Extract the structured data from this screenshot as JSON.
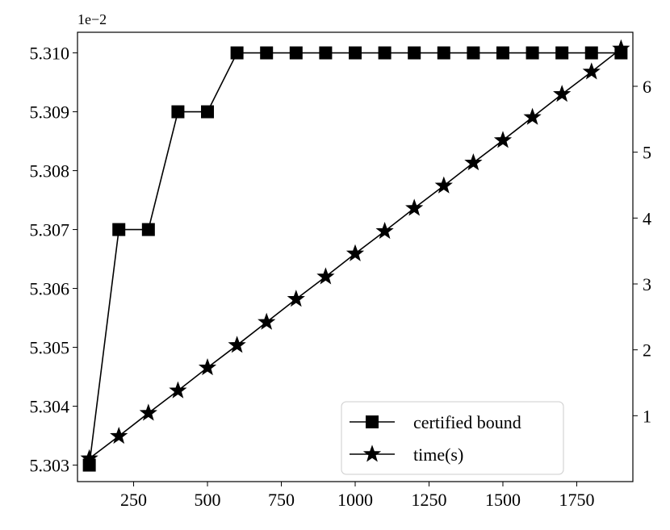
{
  "chart_data": {
    "type": "line",
    "title": "",
    "xlabel": "",
    "ylabel": "",
    "y_offset_label": "1e−2",
    "x": [
      100,
      200,
      300,
      400,
      500,
      600,
      700,
      800,
      900,
      1000,
      1100,
      1200,
      1300,
      1400,
      1500,
      1600,
      1700,
      1800,
      1900
    ],
    "xlim": [
      60,
      1940
    ],
    "xticks": [
      250,
      500,
      750,
      1000,
      1250,
      1500,
      1750
    ],
    "xtick_labels": [
      "250",
      "500",
      "750",
      "1000",
      "1250",
      "1500",
      "1750"
    ],
    "ylim_left": [
      5.30272,
      5.31035
    ],
    "yticks_left": [
      5.303,
      5.304,
      5.305,
      5.306,
      5.307,
      5.308,
      5.309,
      5.31
    ],
    "ytick_labels_left": [
      "5.303",
      "5.304",
      "5.305",
      "5.306",
      "5.307",
      "5.308",
      "5.309",
      "5.310"
    ],
    "ylim_right": [
      0.0,
      6.82
    ],
    "yticks_right": [
      1,
      2,
      3,
      4,
      5,
      6
    ],
    "ytick_labels_right": [
      "1",
      "2",
      "3",
      "4",
      "5",
      "6"
    ],
    "grid": false,
    "legend_position": "lower-right",
    "series": [
      {
        "name": "certified bound",
        "axis": "left",
        "marker": "square",
        "color": "#000000",
        "values": [
          5.303,
          5.307,
          5.307,
          5.309,
          5.309,
          5.31,
          5.31,
          5.31,
          5.31,
          5.31,
          5.31,
          5.31,
          5.31,
          5.31,
          5.31,
          5.31,
          5.31,
          5.31,
          5.31
        ]
      },
      {
        "name": "time(s)",
        "axis": "right",
        "marker": "star",
        "color": "#000000",
        "values": [
          0.35,
          0.69,
          1.04,
          1.38,
          1.73,
          2.07,
          2.42,
          2.77,
          3.11,
          3.46,
          3.8,
          4.15,
          4.49,
          4.84,
          5.18,
          5.53,
          5.88,
          6.22,
          6.57
        ]
      }
    ]
  }
}
